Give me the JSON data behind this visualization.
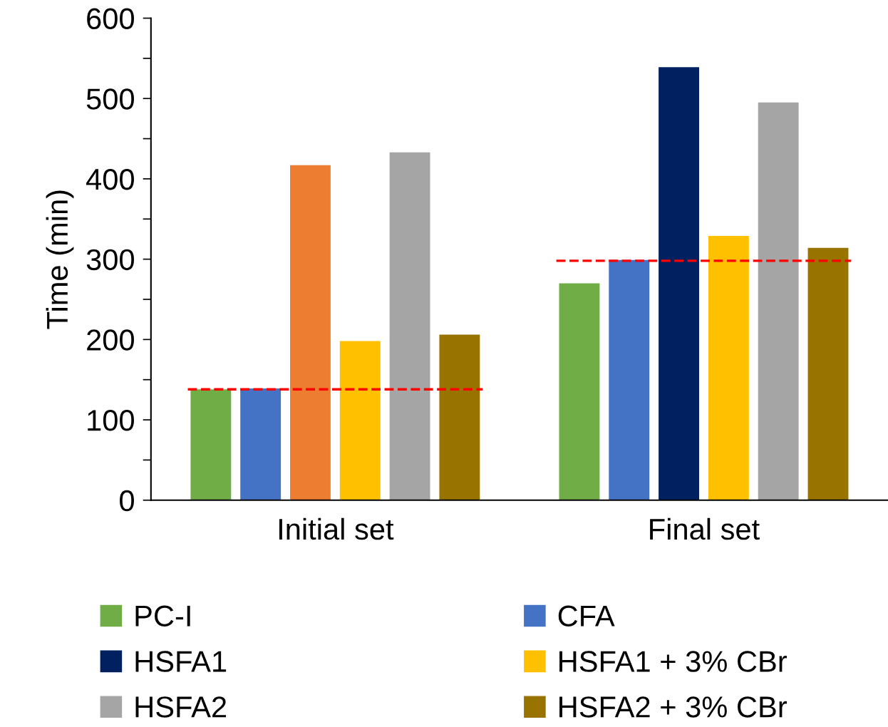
{
  "chart_data": {
    "type": "bar",
    "ylabel": "Time (min)",
    "categories": [
      "Initial set",
      "Final set"
    ],
    "series": [
      {
        "name": "PC-I",
        "color": "#70ad47",
        "values": [
          138,
          270
        ]
      },
      {
        "name": "CFA",
        "color": "#4472c4",
        "values": [
          139,
          299
        ]
      },
      {
        "name": "HSFA1",
        "color": "#002060",
        "colors": [
          "#ed7d31",
          "#002060"
        ],
        "values": [
          417,
          539
        ]
      },
      {
        "name": "HSFA1 + 3% CBr",
        "color": "#ffc000",
        "values": [
          198,
          329
        ]
      },
      {
        "name": "HSFA2",
        "color": "#a5a5a5",
        "values": [
          433,
          495
        ]
      },
      {
        "name": "HSFA2 + 3% CBr",
        "color": "#997300",
        "values": [
          206,
          314
        ]
      }
    ],
    "ylim": [
      0,
      600
    ],
    "yticks": [
      0,
      {
        "value": 50,
        "label": null
      },
      100,
      {
        "value": 150,
        "label": null
      },
      200,
      {
        "value": 250,
        "label": null
      },
      300,
      {
        "value": 350,
        "label": null
      },
      400,
      {
        "value": 450,
        "label": null
      },
      500,
      {
        "value": 550,
        "label": null
      },
      600
    ],
    "ref_lines": [
      {
        "axis": "y",
        "value": 138,
        "color": "#ff0000",
        "line_style": "dashed"
      },
      {
        "axis": "y",
        "value": 298,
        "color": "#ff0000",
        "line_style": "dashed"
      }
    ],
    "grid": false,
    "legend": "bottom"
  }
}
